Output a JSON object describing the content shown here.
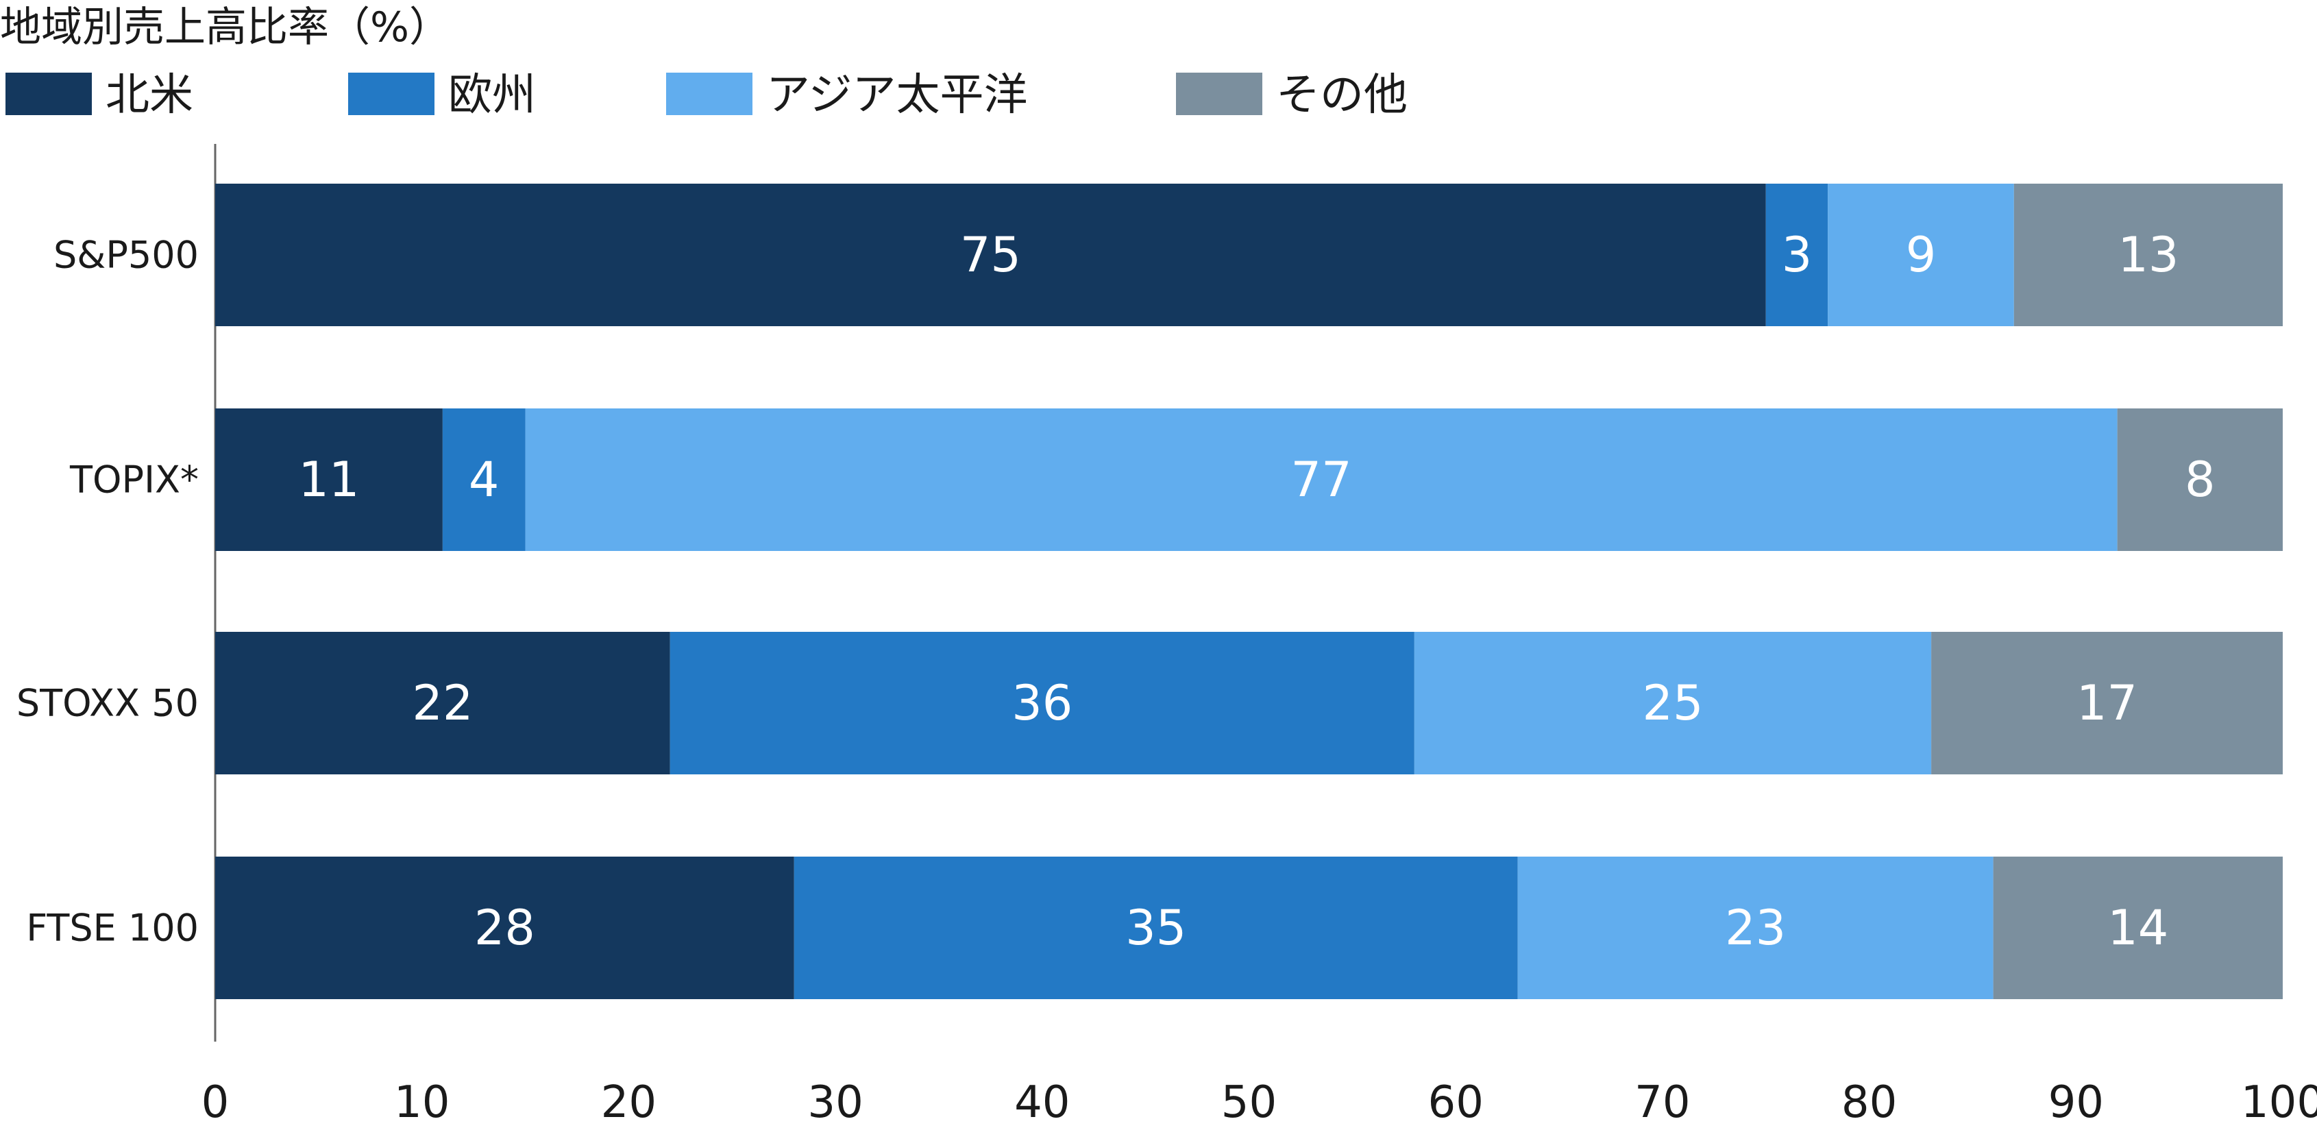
{
  "chart_data": {
    "type": "bar",
    "orientation": "horizontal",
    "stacked": true,
    "title": "地域別売上高比率（%）",
    "xlabel": "",
    "ylabel": "",
    "xlim": [
      0,
      100
    ],
    "x_ticks": [
      0,
      10,
      20,
      30,
      40,
      50,
      60,
      70,
      80,
      90,
      100
    ],
    "grid": false,
    "legend_position": "top-left",
    "categories": [
      "S&P500",
      "TOPIX*",
      "STOXX 50",
      "FTSE 100"
    ],
    "series": [
      {
        "name": "北米",
        "color": "#14385e",
        "values": [
          75,
          11,
          22,
          28
        ]
      },
      {
        "name": "欧州",
        "color": "#2379c5",
        "values": [
          3,
          4,
          36,
          35
        ]
      },
      {
        "name": "アジア太平洋",
        "color": "#61adee",
        "values": [
          9,
          77,
          25,
          23
        ]
      },
      {
        "name": "その他",
        "color": "#7b8f9e",
        "values": [
          13,
          8,
          17,
          14
        ]
      }
    ]
  }
}
